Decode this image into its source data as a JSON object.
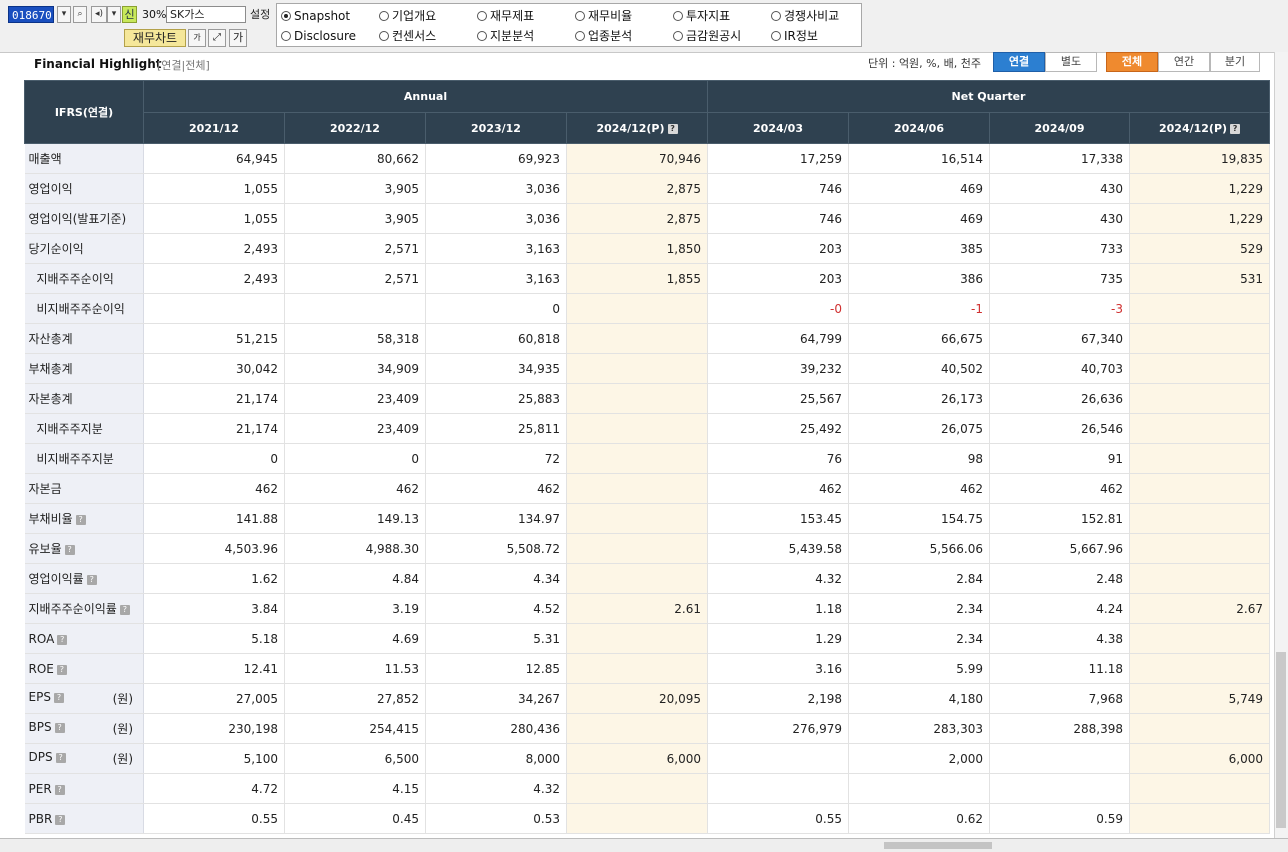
{
  "toolbar": {
    "code": "018670",
    "new_badge": "신",
    "ratio": "30%",
    "company": "SK가스",
    "setting": "설정",
    "chart_button": "재무차트",
    "font_small": "가",
    "font_large": "가"
  },
  "nav": {
    "radios": [
      {
        "label": "Snapshot",
        "selected": true
      },
      {
        "label": "기업개요",
        "selected": false
      },
      {
        "label": "재무제표",
        "selected": false
      },
      {
        "label": "재무비율",
        "selected": false
      },
      {
        "label": "투자지표",
        "selected": false
      },
      {
        "label": "경쟁사비교",
        "selected": false
      },
      {
        "label": "Disclosure",
        "selected": false
      },
      {
        "label": "컨센서스",
        "selected": false
      },
      {
        "label": "지분분석",
        "selected": false
      },
      {
        "label": "업종분석",
        "selected": false
      },
      {
        "label": "금감원공시",
        "selected": false
      },
      {
        "label": "IR정보",
        "selected": false
      }
    ]
  },
  "section": {
    "title": "Financial Highlight",
    "subtitle": "[연결|전체]",
    "unit": "단위 : 억원, %, 배, 천주",
    "toggle_basis": [
      "연결",
      "별도"
    ],
    "toggle_period": [
      "전체",
      "연간",
      "분기"
    ],
    "selected_basis": "연결",
    "selected_period": "전체"
  },
  "table": {
    "corner": "IFRS(연결)",
    "group_annual": "Annual",
    "group_quarter": "Net Quarter",
    "periods": [
      "2021/12",
      "2022/12",
      "2023/12",
      "2024/12(P)",
      "2024/03",
      "2024/06",
      "2024/09",
      "2024/12(P)"
    ],
    "estimate_columns": [
      3,
      7
    ],
    "rows": [
      {
        "label": "매출액",
        "values": [
          "64,945",
          "80,662",
          "69,923",
          "70,946",
          "17,259",
          "16,514",
          "17,338",
          "19,835"
        ]
      },
      {
        "label": "영업이익",
        "values": [
          "1,055",
          "3,905",
          "3,036",
          "2,875",
          "746",
          "469",
          "430",
          "1,229"
        ]
      },
      {
        "label": "영업이익(발표기준)",
        "values": [
          "1,055",
          "3,905",
          "3,036",
          "2,875",
          "746",
          "469",
          "430",
          "1,229"
        ]
      },
      {
        "label": "당기순이익",
        "values": [
          "2,493",
          "2,571",
          "3,163",
          "1,850",
          "203",
          "385",
          "733",
          "529"
        ]
      },
      {
        "label": "지배주주순이익",
        "indent": true,
        "values": [
          "2,493",
          "2,571",
          "3,163",
          "1,855",
          "203",
          "386",
          "735",
          "531"
        ]
      },
      {
        "label": "비지배주주순이익",
        "indent": true,
        "values": [
          "",
          "",
          "0",
          "",
          "-0",
          "-1",
          "-3",
          ""
        ]
      },
      {
        "label": "자산총계",
        "values": [
          "51,215",
          "58,318",
          "60,818",
          "",
          "64,799",
          "66,675",
          "67,340",
          ""
        ]
      },
      {
        "label": "부채총계",
        "values": [
          "30,042",
          "34,909",
          "34,935",
          "",
          "39,232",
          "40,502",
          "40,703",
          ""
        ]
      },
      {
        "label": "자본총계",
        "values": [
          "21,174",
          "23,409",
          "25,883",
          "",
          "25,567",
          "26,173",
          "26,636",
          ""
        ]
      },
      {
        "label": "지배주주지분",
        "indent": true,
        "values": [
          "21,174",
          "23,409",
          "25,811",
          "",
          "25,492",
          "26,075",
          "26,546",
          ""
        ]
      },
      {
        "label": "비지배주주지분",
        "indent": true,
        "values": [
          "0",
          "0",
          "72",
          "",
          "76",
          "98",
          "91",
          ""
        ]
      },
      {
        "label": "자본금",
        "values": [
          "462",
          "462",
          "462",
          "",
          "462",
          "462",
          "462",
          ""
        ]
      },
      {
        "label": "부채비율",
        "help": true,
        "values": [
          "141.88",
          "149.13",
          "134.97",
          "",
          "153.45",
          "154.75",
          "152.81",
          ""
        ]
      },
      {
        "label": "유보율",
        "help": true,
        "values": [
          "4,503.96",
          "4,988.30",
          "5,508.72",
          "",
          "5,439.58",
          "5,566.06",
          "5,667.96",
          ""
        ]
      },
      {
        "label": "영업이익률",
        "help": true,
        "values": [
          "1.62",
          "4.84",
          "4.34",
          "",
          "4.32",
          "2.84",
          "2.48",
          ""
        ]
      },
      {
        "label": "지배주주순이익률",
        "help": true,
        "values": [
          "3.84",
          "3.19",
          "4.52",
          "2.61",
          "1.18",
          "2.34",
          "4.24",
          "2.67"
        ]
      },
      {
        "label": "ROA",
        "help": true,
        "values": [
          "5.18",
          "4.69",
          "5.31",
          "",
          "1.29",
          "2.34",
          "4.38",
          ""
        ]
      },
      {
        "label": "ROE",
        "help": true,
        "values": [
          "12.41",
          "11.53",
          "12.85",
          "",
          "3.16",
          "5.99",
          "11.18",
          ""
        ]
      },
      {
        "label": "EPS",
        "help": true,
        "unit": "(원)",
        "values": [
          "27,005",
          "27,852",
          "34,267",
          "20,095",
          "2,198",
          "4,180",
          "7,968",
          "5,749"
        ]
      },
      {
        "label": "BPS",
        "help": true,
        "unit": "(원)",
        "values": [
          "230,198",
          "254,415",
          "280,436",
          "",
          "276,979",
          "283,303",
          "288,398",
          ""
        ]
      },
      {
        "label": "DPS",
        "help": true,
        "unit": "(원)",
        "values": [
          "5,100",
          "6,500",
          "8,000",
          "6,000",
          "",
          "2,000",
          "",
          "6,000"
        ]
      },
      {
        "label": "PER",
        "help": true,
        "values": [
          "4.72",
          "4.15",
          "4.32",
          "",
          "",
          "",
          "",
          ""
        ]
      },
      {
        "label": "PBR",
        "help": true,
        "values": [
          "0.55",
          "0.45",
          "0.53",
          "",
          "0.55",
          "0.62",
          "0.59",
          ""
        ]
      }
    ]
  }
}
